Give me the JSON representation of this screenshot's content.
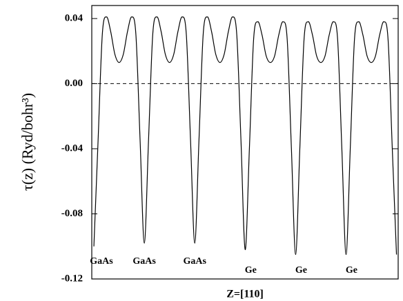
{
  "chart_data": {
    "type": "line",
    "y_label": "τ(z) (Ryd/bohr³)",
    "x_label": "Z=[110]",
    "annotations": [
      "GaAs",
      "GaAs",
      "GaAs",
      "Ge",
      "Ge",
      "Ge"
    ],
    "x": [
      0,
      1,
      2,
      3,
      4,
      5,
      6,
      7,
      8,
      9,
      10,
      11,
      12,
      13,
      14,
      15,
      16,
      17,
      18,
      19,
      20,
      21,
      22,
      23,
      24,
      25,
      26,
      27,
      28,
      29,
      30,
      31,
      32,
      33,
      34,
      35,
      36,
      37,
      38,
      39,
      40,
      41,
      42,
      43,
      44,
      45,
      46,
      47,
      48,
      49,
      50,
      51,
      52,
      53,
      54,
      55,
      56,
      57,
      58,
      59,
      60,
      61,
      62,
      63,
      64,
      65,
      66,
      67,
      68,
      69,
      70,
      71,
      72
    ],
    "values": [
      -0.1,
      -0.035,
      0.03,
      0.041,
      0.032,
      0.018,
      0.013,
      0.018,
      0.032,
      0.041,
      0.03,
      -0.035,
      -0.098,
      -0.035,
      0.03,
      0.041,
      0.032,
      0.018,
      0.013,
      0.018,
      0.032,
      0.041,
      0.03,
      -0.035,
      -0.098,
      -0.035,
      0.03,
      0.041,
      0.032,
      0.018,
      0.013,
      0.018,
      0.032,
      0.041,
      0.03,
      -0.035,
      -0.102,
      -0.04,
      0.027,
      0.038,
      0.03,
      0.017,
      0.013,
      0.017,
      0.03,
      0.038,
      0.027,
      -0.04,
      -0.105,
      -0.04,
      0.027,
      0.038,
      0.03,
      0.017,
      0.013,
      0.017,
      0.03,
      0.038,
      0.027,
      -0.04,
      -0.105,
      -0.04,
      0.027,
      0.038,
      0.03,
      0.017,
      0.013,
      0.017,
      0.03,
      0.038,
      0.027,
      -0.04,
      -0.105
    ],
    "color": "#000000",
    "hline": 0,
    "xlim": [
      -0.5,
      72.4
    ],
    "ylim": [
      -0.12,
      0.048
    ],
    "yticks": [
      0.04,
      {
        "value": 0,
        "label": "0.00"
      },
      -0.04,
      -0.08,
      -0.12
    ]
  }
}
